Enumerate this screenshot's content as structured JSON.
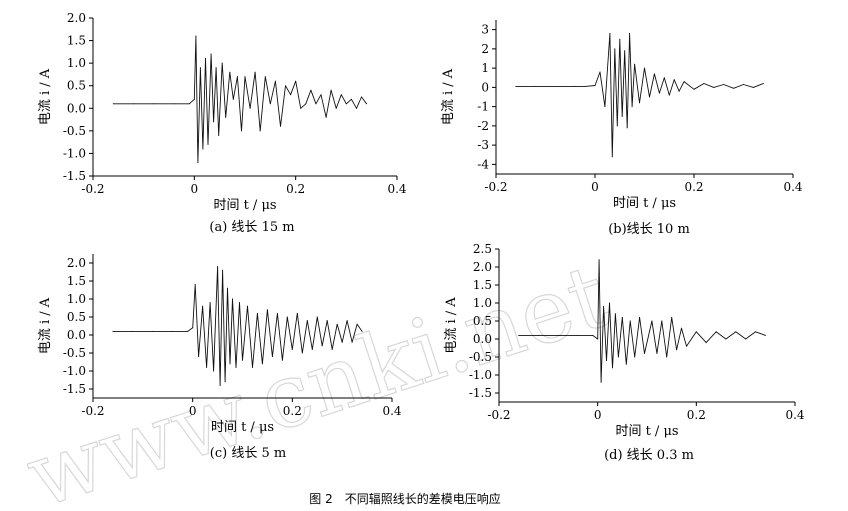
{
  "figure_caption": "图 2　不同辐照线长的差模电压响应",
  "watermark": "www.cnki.net",
  "chart_data": [
    {
      "type": "line",
      "caption": "(a) 线长 15 m",
      "xlabel": "时间 t / μs",
      "ylabel": "电流 i / A",
      "xlim": [
        -0.2,
        0.4
      ],
      "ylim": [
        -1.5,
        2.0
      ],
      "xticks": [
        "-0.2",
        "0",
        "0.2",
        "0.4"
      ],
      "yticks": [
        "2.0",
        "1.5",
        "1.0",
        "0.5",
        "0.0",
        "-0.5",
        "-1.0",
        "-1.5"
      ],
      "series": [
        {
          "x": [
            -0.16,
            -0.12,
            -0.08,
            -0.04,
            -0.01,
            0.0,
            0.003,
            0.007,
            0.012,
            0.017,
            0.022,
            0.027,
            0.033,
            0.038,
            0.043,
            0.048,
            0.055,
            0.062,
            0.07,
            0.077,
            0.085,
            0.093,
            0.1,
            0.11,
            0.12,
            0.13,
            0.14,
            0.15,
            0.16,
            0.17,
            0.18,
            0.19,
            0.2,
            0.21,
            0.22,
            0.23,
            0.24,
            0.25,
            0.26,
            0.27,
            0.28,
            0.29,
            0.3,
            0.31,
            0.32,
            0.33,
            0.34
          ],
          "y": [
            0.1,
            0.1,
            0.1,
            0.1,
            0.1,
            0.2,
            1.6,
            -1.2,
            0.9,
            -0.9,
            1.1,
            -0.8,
            1.2,
            -0.3,
            0.9,
            -0.6,
            1.0,
            -0.2,
            0.8,
            0.2,
            0.7,
            -0.5,
            0.7,
            0.0,
            0.8,
            -0.5,
            0.7,
            0.1,
            0.6,
            -0.4,
            0.5,
            0.3,
            0.6,
            0.0,
            0.1,
            0.4,
            0.1,
            0.3,
            -0.2,
            0.4,
            0.0,
            0.3,
            0.1,
            0.2,
            0.0,
            0.25,
            0.1
          ]
        }
      ]
    },
    {
      "type": "line",
      "caption": "(b)线长 10 m",
      "xlabel": "时间 t / μs",
      "ylabel": "电流 i / A",
      "xlim": [
        -0.2,
        0.4
      ],
      "ylim": [
        -4.5,
        3.5
      ],
      "xticks": [
        "-0.2",
        "0",
        "0.2",
        "0.4"
      ],
      "yticks": [
        "3",
        "2",
        "1",
        "0",
        "-1",
        "-2",
        "-3",
        "-4"
      ],
      "series": [
        {
          "x": [
            -0.16,
            -0.12,
            -0.08,
            -0.04,
            -0.02,
            0.0,
            0.01,
            0.02,
            0.03,
            0.035,
            0.04,
            0.045,
            0.05,
            0.055,
            0.06,
            0.065,
            0.07,
            0.075,
            0.08,
            0.09,
            0.1,
            0.11,
            0.12,
            0.13,
            0.14,
            0.15,
            0.16,
            0.17,
            0.18,
            0.2,
            0.22,
            0.24,
            0.26,
            0.28,
            0.3,
            0.32,
            0.34
          ],
          "y": [
            0.05,
            0.05,
            0.05,
            0.05,
            0.05,
            0.1,
            0.8,
            -1.0,
            2.8,
            -3.6,
            2.0,
            -2.0,
            2.5,
            -1.5,
            1.9,
            -2.1,
            2.8,
            -1.0,
            1.2,
            -0.8,
            1.0,
            -0.5,
            0.7,
            -0.3,
            0.5,
            -0.4,
            0.4,
            -0.2,
            0.3,
            -0.1,
            0.2,
            0.0,
            0.15,
            -0.05,
            0.15,
            0.0,
            0.2
          ]
        }
      ]
    },
    {
      "type": "line",
      "caption": "(c) 线长 5 m",
      "xlabel": "时间 t / μs",
      "ylabel": "电流 i / A",
      "xlim": [
        -0.2,
        0.4
      ],
      "ylim": [
        -1.75,
        2.25
      ],
      "xticks": [
        "-0.2",
        "0",
        "0.2",
        "0.4"
      ],
      "yticks": [
        "2.0",
        "1.5",
        "1.0",
        "0.5",
        "0.0",
        "-0.5",
        "-1.0",
        "-1.5"
      ],
      "series": [
        {
          "x": [
            -0.16,
            -0.12,
            -0.08,
            -0.04,
            -0.01,
            0.0,
            0.005,
            0.012,
            0.02,
            0.028,
            0.035,
            0.042,
            0.05,
            0.055,
            0.06,
            0.065,
            0.07,
            0.075,
            0.08,
            0.087,
            0.094,
            0.1,
            0.11,
            0.12,
            0.13,
            0.14,
            0.15,
            0.16,
            0.17,
            0.18,
            0.19,
            0.2,
            0.21,
            0.22,
            0.23,
            0.24,
            0.25,
            0.26,
            0.27,
            0.28,
            0.29,
            0.3,
            0.31,
            0.32,
            0.33,
            0.34
          ],
          "y": [
            0.1,
            0.1,
            0.1,
            0.1,
            0.1,
            0.2,
            1.4,
            -0.6,
            0.8,
            -0.9,
            0.9,
            -1.0,
            1.9,
            -1.4,
            1.8,
            -1.3,
            1.3,
            -0.8,
            1.0,
            -0.9,
            0.9,
            -0.7,
            0.8,
            -0.9,
            0.6,
            -0.8,
            0.7,
            -0.6,
            0.6,
            -0.7,
            0.5,
            -0.4,
            0.6,
            -0.5,
            0.4,
            -0.4,
            0.5,
            -0.3,
            0.4,
            -0.4,
            0.3,
            -0.2,
            0.4,
            -0.2,
            0.3,
            0.1
          ]
        }
      ]
    },
    {
      "type": "line",
      "caption": "(d) 线长 0.3 m",
      "xlabel": "时间 t / μs",
      "ylabel": "电流 i / A",
      "xlim": [
        -0.2,
        0.4
      ],
      "ylim": [
        -1.75,
        2.5
      ],
      "xticks": [
        "-0.2",
        "0",
        "0.2",
        "0.4"
      ],
      "yticks": [
        "2.5",
        "2.0",
        "1.5",
        "1.0",
        "0.5",
        "0.0",
        "-0.5",
        "-1.0",
        "-1.5"
      ],
      "series": [
        {
          "x": [
            -0.16,
            -0.12,
            -0.08,
            -0.04,
            -0.01,
            0.0,
            0.003,
            0.007,
            0.012,
            0.018,
            0.024,
            0.03,
            0.036,
            0.042,
            0.05,
            0.058,
            0.066,
            0.075,
            0.085,
            0.095,
            0.11,
            0.12,
            0.13,
            0.14,
            0.15,
            0.16,
            0.17,
            0.18,
            0.2,
            0.22,
            0.24,
            0.26,
            0.28,
            0.3,
            0.32,
            0.34
          ],
          "y": [
            0.1,
            0.1,
            0.1,
            0.1,
            0.1,
            0.0,
            2.2,
            -1.2,
            0.9,
            -0.6,
            1.0,
            -0.8,
            0.7,
            -0.5,
            0.6,
            -0.7,
            0.5,
            -0.5,
            0.6,
            -0.4,
            0.5,
            -0.4,
            0.5,
            -0.5,
            0.6,
            -0.3,
            0.3,
            -0.2,
            0.2,
            -0.1,
            0.2,
            0.0,
            0.2,
            0.0,
            0.2,
            0.1
          ]
        }
      ]
    }
  ]
}
